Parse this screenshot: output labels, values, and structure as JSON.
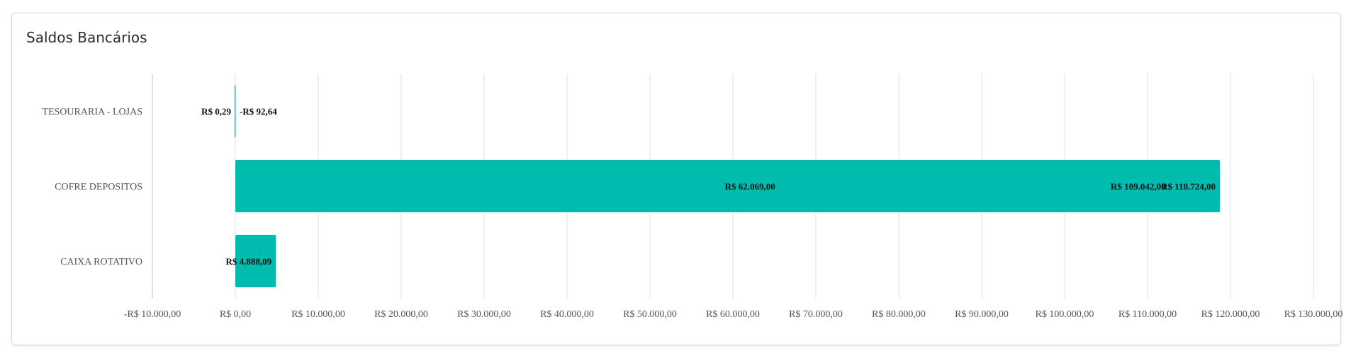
{
  "card": {
    "title": "Saldos Bancários"
  },
  "chart_data": {
    "type": "bar",
    "orientation": "horizontal",
    "title": "Saldos Bancários",
    "categories": [
      "TESOURARIA - LOJAS",
      "COFRE DEPOSITOS",
      "CAIXA ROTATIVO"
    ],
    "values": [
      0.29,
      118724.0,
      4888.09
    ],
    "bar_extents": [
      [
        -92.64,
        0.29
      ],
      [
        0,
        118724.0
      ],
      [
        0,
        4888.09
      ]
    ],
    "data_labels": [
      [
        "R$ 0,29",
        "-R$ 92,64"
      ],
      [
        "R$ 62.069,00",
        "R$ 109.042,00",
        "R$ 118.724,00"
      ],
      [
        "R$ 4.888,09"
      ]
    ],
    "xlim": [
      -10000,
      130000
    ],
    "x_ticks": [
      -10000,
      0,
      10000,
      20000,
      30000,
      40000,
      50000,
      60000,
      70000,
      80000,
      90000,
      100000,
      110000,
      120000,
      130000
    ],
    "x_tick_labels": [
      "-R$ 10.000,00",
      "R$ 0,00",
      "R$ 10.000,00",
      "R$ 20.000,00",
      "R$ 30.000,00",
      "R$ 40.000,00",
      "R$ 50.000,00",
      "R$ 60.000,00",
      "R$ 70.000,00",
      "R$ 80.000,00",
      "R$ 90.000,00",
      "R$ 100.000,00",
      "R$ 110.000,00",
      "R$ 120.000,00",
      "R$ 130.000,00"
    ],
    "grid": true,
    "legend": "none",
    "bar_color": "#00bcae"
  }
}
